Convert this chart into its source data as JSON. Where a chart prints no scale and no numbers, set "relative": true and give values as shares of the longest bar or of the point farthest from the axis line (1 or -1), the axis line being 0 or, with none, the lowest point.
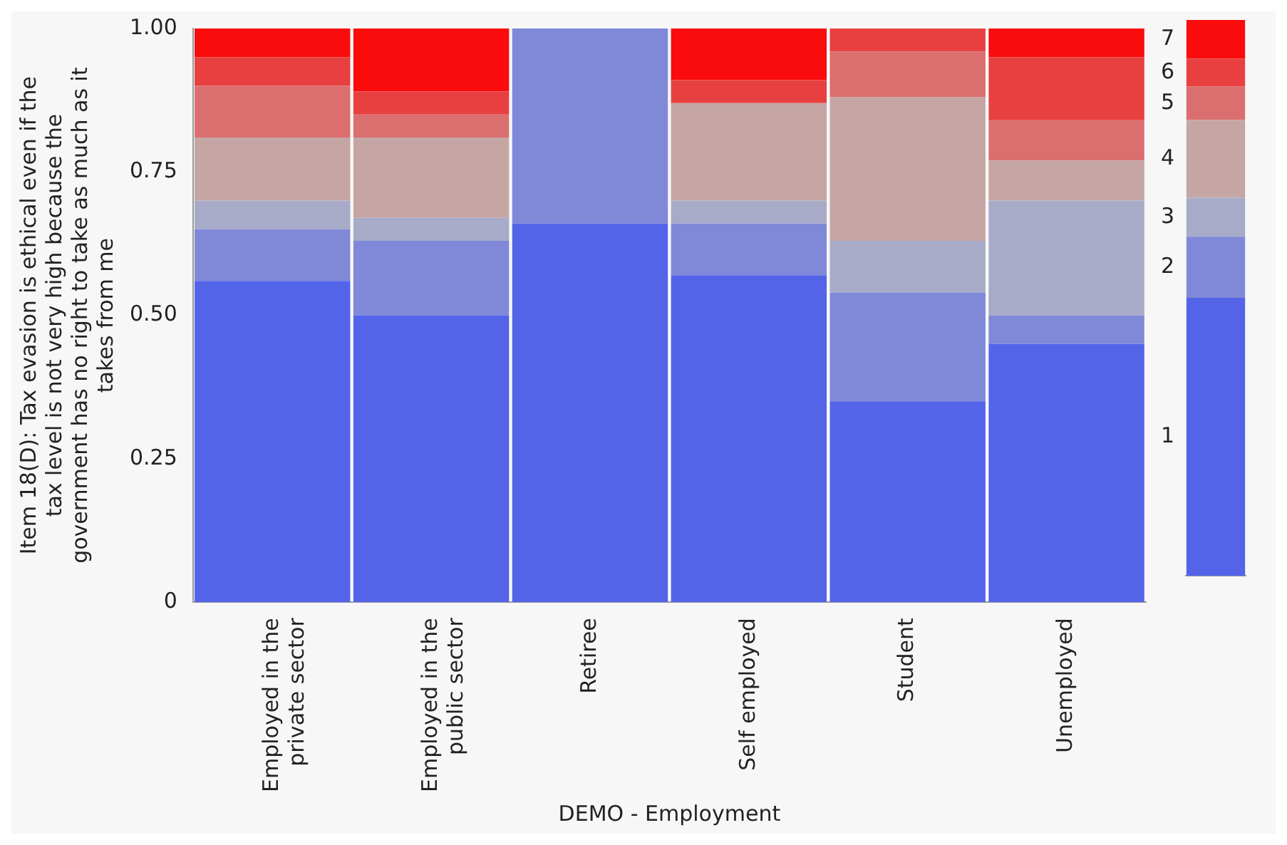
{
  "chart_data": [
    {
      "type": "bar",
      "stacked": true,
      "xlabel": "DEMO - Employment",
      "ylabel": "Item 18(D): Tax evasion is ethical even if the tax level is not very high because the government has no right to take as much as it takes from me",
      "categories": [
        "Employed in the private sector",
        "Employed in the public sector",
        "Retiree",
        "Self employed",
        "Student",
        "Unemployed"
      ],
      "series": [
        {
          "color": "#5364e8",
          "values": [
            0.56,
            0.5,
            0.66,
            0.57,
            0.35,
            0.45
          ]
        },
        {
          "color": "#8088d8",
          "values": [
            0.09,
            0.13,
            0.34,
            0.09,
            0.19,
            0.05
          ]
        },
        {
          "color": "#a7abc8",
          "values": [
            0.05,
            0.04,
            0,
            0.04,
            0.09,
            0.2
          ]
        },
        {
          "color": "#c6a5a5",
          "values": [
            0.11,
            0.14,
            0,
            0.17,
            0.25,
            0.07
          ]
        },
        {
          "color": "#db6e6e",
          "values": [
            0.09,
            0.04,
            0,
            0,
            0.08,
            0.07
          ]
        },
        {
          "color": "#e84040",
          "values": [
            0.05,
            0.04,
            0,
            0.04,
            0.04,
            0.11
          ]
        },
        {
          "color": "#fa0c0c",
          "values": [
            0.05,
            0.11,
            0,
            0.09,
            0,
            0.05
          ]
        }
      ],
      "ylim": [
        0,
        1
      ],
      "yticks": [
        0,
        {
          "value": 0.25,
          "label": "0.25"
        },
        {
          "value": 0.5,
          "label": "0.50"
        },
        {
          "value": 0.75,
          "label": "0.75"
        },
        {
          "value": 1,
          "label": "1.00"
        }
      ],
      "grid": false,
      "legend": false
    },
    {
      "type": "bar",
      "stacked": true,
      "categories": [
        null
      ],
      "series": [
        {
          "name": "1",
          "color": "#5364e8",
          "values": [
            0.5
          ]
        },
        {
          "name": "2",
          "color": "#8088d8",
          "values": [
            0.11
          ]
        },
        {
          "name": "3",
          "color": "#a7abc8",
          "values": [
            0.07
          ]
        },
        {
          "name": "4",
          "color": "#c6a5a5",
          "values": [
            0.14
          ]
        },
        {
          "name": "5",
          "color": "#db6e6e",
          "values": [
            0.06
          ]
        },
        {
          "name": "6",
          "color": "#e84040",
          "values": [
            0.05
          ]
        },
        {
          "name": "7",
          "color": "#fa0c0c",
          "values": [
            0.07
          ]
        }
      ],
      "relative": true,
      "grid": false,
      "legend": "left"
    }
  ]
}
